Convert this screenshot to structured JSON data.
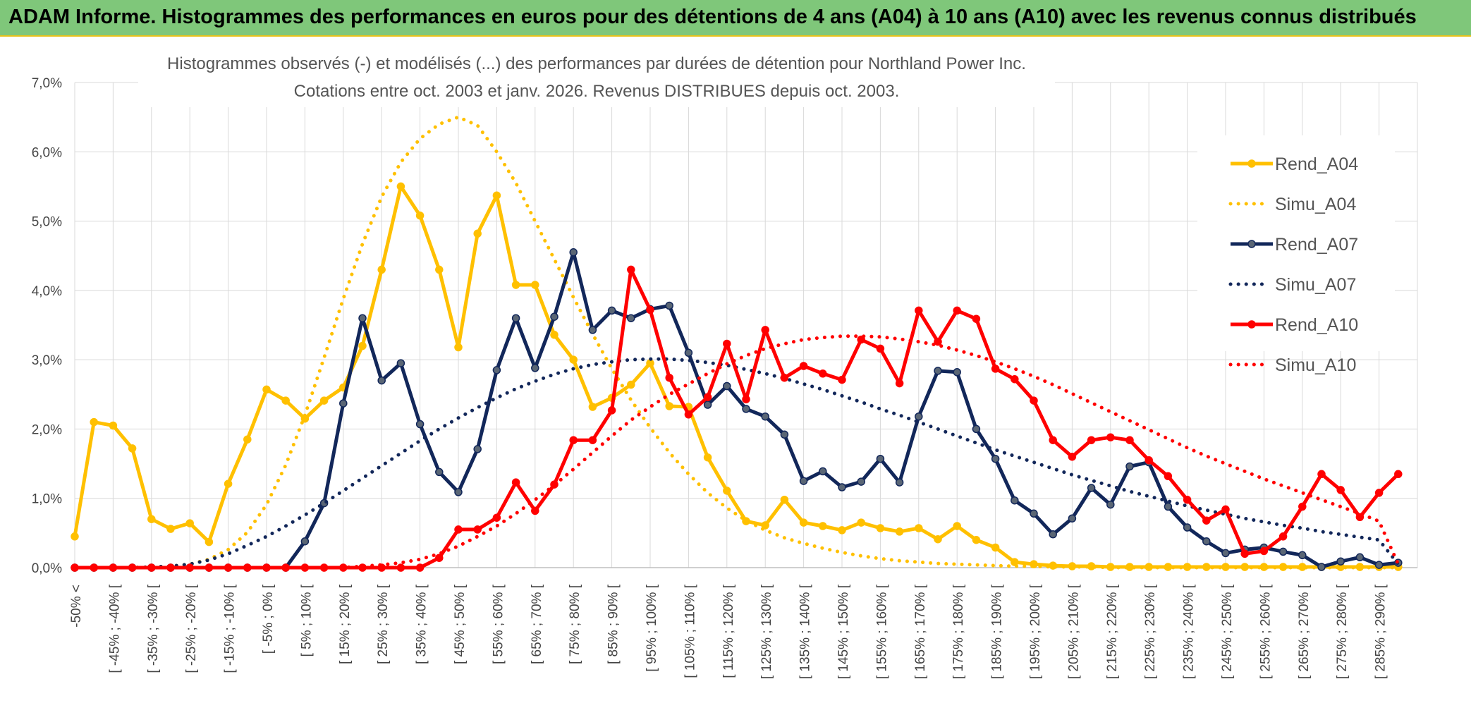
{
  "banner": {
    "title": "ADAM Informe. Histogrammes des performances en euros pour des détentions de 4 ans (A04) à 10 ans (A10) avec les revenus connus distribués"
  },
  "colors": {
    "banner_bg": "#7fc77a",
    "A04": "#ffc000",
    "A07": "#12275a",
    "A07_marker": "#5a6675",
    "A10": "#ff0000",
    "grid": "#d9d9d9"
  },
  "chart_data": {
    "type": "line",
    "title": "Histogrammes observés (-) et modélisés (...) des performances par durées de détention pour Northland Power Inc.",
    "subtitle": "Cotations entre oct. 2003 et janv. 2026. Revenus DISTRIBUES depuis oct. 2003.",
    "xlabel": "",
    "ylabel": "",
    "ylim": [
      0,
      7
    ],
    "y_ticks": [
      "0,0%",
      "1,0%",
      "2,0%",
      "3,0%",
      "4,0%",
      "5,0%",
      "6,0%",
      "7,0%"
    ],
    "grid": true,
    "legend_position": "right",
    "categories": [
      "-50% <",
      "[ -50% ; -45% [",
      "[ -45% ; -40% [",
      "[ -40% ; -35% [",
      "[ -35% ; -30% [",
      "[ -30% ; -25% [",
      "[ -25% ; -20% [",
      "[ -20% ; -15% [",
      "[ -15% ; -10% [",
      "[ -10% ; -5% [",
      "[ -5% ; 0% [",
      "[ 0% ; 5% [",
      "[ 5% ; 10% [",
      "[ 10% ; 15% [",
      "[ 15% ; 20% [",
      "[ 20% ; 25% [",
      "[ 25% ; 30% [",
      "[ 30% ; 35% [",
      "[ 35% ; 40% [",
      "[ 40% ; 45% [",
      "[ 45% ; 50% [",
      "[ 50% ; 55% [",
      "[ 55% ; 60% [",
      "[ 60% ; 65% [",
      "[ 65% ; 70% [",
      "[ 70% ; 75% [",
      "[ 75% ; 80% [",
      "[ 80% ; 85% [",
      "[ 85% ; 90% [",
      "[ 90% ; 95% [",
      "[ 95% ; 100% [",
      "[ 100% ; 105% [",
      "[ 105% ; 110% [",
      "[ 110% ; 115% [",
      "[ 115% ; 120% [",
      "[ 120% ; 125% [",
      "[ 125% ; 130% [",
      "[ 130% ; 135% [",
      "[ 135% ; 140% [",
      "[ 140% ; 145% [",
      "[ 145% ; 150% [",
      "[ 150% ; 155% [",
      "[ 155% ; 160% [",
      "[ 160% ; 165% [",
      "[ 165% ; 170% [",
      "[ 170% ; 175% [",
      "[ 175% ; 180% [",
      "[ 180% ; 185% [",
      "[ 185% ; 190% [",
      "[ 190% ; 195% [",
      "[ 195% ; 200% [",
      "[ 200% ; 205% [",
      "[ 205% ; 210% [",
      "[ 210% ; 215% [",
      "[ 215% ; 220% [",
      "[ 220% ; 225% [",
      "[ 225% ; 230% [",
      "[ 230% ; 235% [",
      "[ 235% ; 240% [",
      "[ 240% ; 245% [",
      "[ 245% ; 250% [",
      "[ 250% ; 255% [",
      "[ 255% ; 260% [",
      "[ 260% ; 265% [",
      "[ 265% ; 270% [",
      "[ 270% ; 275% [",
      "[ 275% ; 280% [",
      "[ 280% ; 285% [",
      "[ 285% ; 290% [",
      "[ 290% ; 295% ["
    ],
    "visible_tick_labels": [
      "-50% <",
      "[ -45% ; -40% [",
      "[ -35% ; -30% [",
      "[ -25% ; -20% [",
      "[ -15% ; -10% [",
      "[ -5% ; 0% [",
      "[ 5% ; 10% [",
      "[ 15% ; 20% [",
      "[ 25% ; 30% [",
      "[ 35% ; 40% [",
      "[ 45% ; 50% [",
      "[ 55% ; 60% [",
      "[ 65% ; 70% [",
      "[ 75% ; 80% [",
      "[ 85% ; 90% [",
      "[ 95% ; 100% [",
      "[ 105% ; 110% [",
      "[ 115% ; 120% [",
      "[ 125% ; 130% [",
      "[ 135% ; 140% [",
      "[ 145% ; 150% [",
      "[ 155% ; 160% [",
      "[ 165% ; 170% [",
      "[ 175% ; 180% [",
      "[ 185% ; 190% [",
      "[ 195% ; 200% [",
      "[ 205% ; 210% [",
      "[ 215% ; 220% [",
      "[ 225% ; 230% [",
      "[ 235% ; 240% [",
      "[ 245% ; 250% [",
      "[ 255% ; 260% [",
      "[ 265% ; 270% [",
      "[ 275% ; 280% [",
      "[ 285% ; 290% ["
    ],
    "series": [
      {
        "name": "Rend_A04",
        "style": "solid",
        "color": "#ffc000",
        "values": [
          0.45,
          2.1,
          2.05,
          1.72,
          0.7,
          0.56,
          0.64,
          0.37,
          1.21,
          1.85,
          2.57,
          2.41,
          2.15,
          2.41,
          2.6,
          3.2,
          4.3,
          5.5,
          5.08,
          4.3,
          3.18,
          4.82,
          5.37,
          4.08,
          4.08,
          3.36,
          3.0,
          2.32,
          2.45,
          2.64,
          2.95,
          2.33,
          2.32,
          1.59,
          1.11,
          0.67,
          0.61,
          0.98,
          0.65,
          0.6,
          0.54,
          0.65,
          0.57,
          0.52,
          0.57,
          0.41,
          0.6,
          0.4,
          0.29,
          0.08,
          0.05,
          0.03,
          0.02,
          0.02,
          0.01,
          0.01,
          0.01,
          0.01,
          0.01,
          0.01,
          0.01,
          0.01,
          0.01,
          0.01,
          0.01,
          0.01,
          0.01,
          0.01,
          0.01,
          0.01
        ]
      },
      {
        "name": "Simu_A04",
        "style": "dotted",
        "color": "#ffc000",
        "values": [
          0.0,
          0.0,
          0.0,
          0.0,
          0.01,
          0.02,
          0.05,
          0.12,
          0.26,
          0.51,
          0.91,
          1.48,
          2.2,
          3.03,
          3.88,
          4.67,
          5.35,
          5.85,
          6.19,
          6.4,
          6.5,
          6.38,
          6.0,
          5.55,
          5.0,
          4.45,
          3.9,
          3.37,
          2.87,
          2.42,
          2.02,
          1.66,
          1.35,
          1.08,
          0.86,
          0.68,
          0.54,
          0.43,
          0.35,
          0.28,
          0.22,
          0.17,
          0.13,
          0.1,
          0.08,
          0.06,
          0.05,
          0.04,
          0.03,
          0.02,
          0.02,
          0.01,
          0.01,
          0.01,
          0.0,
          0.0,
          0.0,
          0.0,
          0.0,
          0.0,
          0.0,
          0.0,
          0.0,
          0.0,
          0.0,
          0.0,
          0.0,
          0.0,
          0.0,
          0.0
        ]
      },
      {
        "name": "Rend_A07",
        "style": "solid",
        "color": "#12275a",
        "values": [
          0.0,
          0.0,
          0.0,
          0.0,
          0.0,
          0.0,
          0.0,
          0.0,
          0.0,
          0.0,
          0.0,
          0.0,
          0.38,
          0.93,
          2.37,
          3.6,
          2.7,
          2.95,
          2.07,
          1.38,
          1.09,
          1.71,
          2.85,
          3.6,
          2.88,
          3.62,
          4.55,
          3.43,
          3.71,
          3.6,
          3.73,
          3.78,
          3.1,
          2.35,
          2.62,
          2.29,
          2.18,
          1.92,
          1.25,
          1.39,
          1.16,
          1.24,
          1.57,
          1.23,
          2.18,
          2.84,
          2.82,
          2.0,
          1.57,
          0.97,
          0.78,
          0.48,
          0.71,
          1.15,
          0.91,
          1.46,
          1.52,
          0.88,
          0.58,
          0.38,
          0.21,
          0.26,
          0.29,
          0.23,
          0.18,
          0.01,
          0.09,
          0.15,
          0.04,
          0.07
        ]
      },
      {
        "name": "Simu_A07",
        "style": "dotted",
        "color": "#12275a",
        "values": [
          0.0,
          0.0,
          0.0,
          0.0,
          0.01,
          0.02,
          0.05,
          0.11,
          0.2,
          0.32,
          0.45,
          0.6,
          0.76,
          0.93,
          1.11,
          1.29,
          1.47,
          1.65,
          1.83,
          2.0,
          2.16,
          2.31,
          2.45,
          2.58,
          2.69,
          2.79,
          2.87,
          2.93,
          2.97,
          3.0,
          3.01,
          3.01,
          2.99,
          2.96,
          2.92,
          2.86,
          2.8,
          2.73,
          2.65,
          2.57,
          2.48,
          2.39,
          2.29,
          2.2,
          2.1,
          2.0,
          1.9,
          1.8,
          1.7,
          1.61,
          1.52,
          1.43,
          1.34,
          1.26,
          1.18,
          1.1,
          1.03,
          0.96,
          0.89,
          0.83,
          0.77,
          0.71,
          0.66,
          0.61,
          0.57,
          0.52,
          0.48,
          0.44,
          0.4,
          0.05
        ]
      },
      {
        "name": "Rend_A10",
        "style": "solid",
        "color": "#ff0000",
        "values": [
          0.0,
          0.0,
          0.0,
          0.0,
          0.0,
          0.0,
          0.0,
          0.0,
          0.0,
          0.0,
          0.0,
          0.0,
          0.0,
          0.0,
          0.0,
          0.0,
          0.0,
          0.0,
          0.0,
          0.14,
          0.55,
          0.55,
          0.72,
          1.23,
          0.82,
          1.2,
          1.84,
          1.84,
          2.27,
          4.3,
          3.72,
          2.74,
          2.21,
          2.46,
          3.23,
          2.43,
          3.43,
          2.74,
          2.91,
          2.8,
          2.71,
          3.29,
          3.16,
          2.66,
          3.71,
          3.26,
          3.71,
          3.59,
          2.87,
          2.72,
          2.41,
          1.84,
          1.6,
          1.84,
          1.88,
          1.84,
          1.55,
          1.32,
          0.98,
          0.68,
          0.84,
          0.2,
          0.24,
          0.45,
          0.88,
          1.35,
          1.12,
          0.73,
          1.08,
          1.35
        ]
      },
      {
        "name": "Simu_A10",
        "style": "dotted",
        "color": "#ff0000",
        "values": [
          0.0,
          0.0,
          0.0,
          0.0,
          0.0,
          0.0,
          0.0,
          0.0,
          0.0,
          0.0,
          0.0,
          0.0,
          0.0,
          0.0,
          0.0,
          0.02,
          0.04,
          0.07,
          0.12,
          0.2,
          0.31,
          0.45,
          0.6,
          0.78,
          0.98,
          1.19,
          1.42,
          1.66,
          1.9,
          2.13,
          2.32,
          2.5,
          2.65,
          2.8,
          2.94,
          3.06,
          3.16,
          3.23,
          3.29,
          3.32,
          3.34,
          3.34,
          3.33,
          3.3,
          3.26,
          3.21,
          3.14,
          3.06,
          2.97,
          2.87,
          2.76,
          2.64,
          2.51,
          2.38,
          2.25,
          2.12,
          1.99,
          1.86,
          1.73,
          1.61,
          1.5,
          1.39,
          1.28,
          1.18,
          1.08,
          0.98,
          0.88,
          0.78,
          0.67,
          0.05
        ]
      }
    ]
  }
}
